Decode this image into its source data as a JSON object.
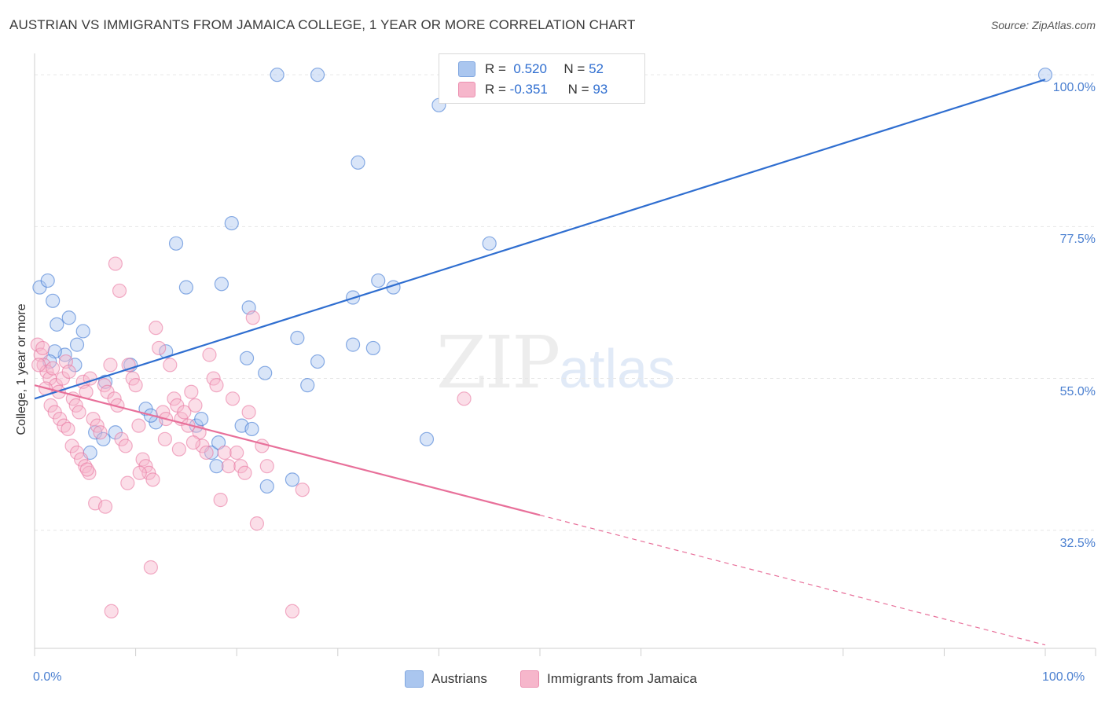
{
  "title": "AUSTRIAN VS IMMIGRANTS FROM JAMAICA COLLEGE, 1 YEAR OR MORE CORRELATION CHART",
  "source": "Source: ZipAtlas.com",
  "watermark": {
    "zip": "ZIP",
    "atlas": "atlas"
  },
  "legend": {
    "r_label": "R =",
    "n_label": "N =",
    "series": [
      {
        "r": "0.520",
        "n": "52"
      },
      {
        "r": "-0.351",
        "n": "93"
      }
    ]
  },
  "bottom_legend": [
    "Austrians",
    "Immigrants from Jamaica"
  ],
  "colors": {
    "blue_fill": "#aac6ef",
    "blue_line": "#2f6ed0",
    "pink_fill": "#f6b6cb",
    "pink_line": "#e8709a",
    "grid": "#e6e6e6",
    "tick": "#4a7fd0"
  },
  "chart_data": {
    "type": "scatter",
    "title": "AUSTRIAN VS IMMIGRANTS FROM JAMAICA COLLEGE, 1 YEAR OR MORE CORRELATION CHART",
    "xlabel": "",
    "ylabel": "College, 1 year or more",
    "xlim": [
      0,
      100
    ],
    "ylim": [
      15,
      102
    ],
    "x_tick_labels": [
      "0.0%",
      "100.0%"
    ],
    "y_ticks": [
      32.5,
      55.0,
      77.5,
      100.0
    ],
    "y_tick_labels": [
      "32.5%",
      "55.0%",
      "77.5%",
      "100.0%"
    ],
    "grid": true,
    "series": [
      {
        "name": "Austrians",
        "trend": {
          "x": [
            0,
            100
          ],
          "y": [
            52,
            99.3
          ],
          "solid_until": 100
        },
        "points": [
          [
            0.5,
            68.5
          ],
          [
            1.3,
            69.5
          ],
          [
            1.8,
            66.5
          ],
          [
            2.2,
            63
          ],
          [
            3.4,
            64
          ],
          [
            4.2,
            60
          ],
          [
            4.8,
            62
          ],
          [
            4.0,
            57
          ],
          [
            3.0,
            58.5
          ],
          [
            2.0,
            59
          ],
          [
            1.5,
            57.5
          ],
          [
            7.0,
            54.5
          ],
          [
            9.5,
            57
          ],
          [
            11,
            50.5
          ],
          [
            12,
            48.5
          ],
          [
            11.5,
            49.5
          ],
          [
            13,
            59
          ],
          [
            14,
            75
          ],
          [
            15,
            68.5
          ],
          [
            16,
            48
          ],
          [
            16.5,
            49
          ],
          [
            17.5,
            44
          ],
          [
            18,
            42
          ],
          [
            18.5,
            69
          ],
          [
            18.2,
            45.5
          ],
          [
            20.5,
            48
          ],
          [
            21,
            58
          ],
          [
            21.5,
            47.5
          ],
          [
            23,
            39
          ],
          [
            22.8,
            55.8
          ],
          [
            19.5,
            78
          ],
          [
            21.2,
            65.5
          ],
          [
            25.5,
            40
          ],
          [
            26,
            61
          ],
          [
            27,
            54
          ],
          [
            28,
            57.5
          ],
          [
            24,
            100
          ],
          [
            28,
            100
          ],
          [
            31.5,
            67
          ],
          [
            31.5,
            60
          ],
          [
            32,
            87
          ],
          [
            33.5,
            59.5
          ],
          [
            34,
            69.5
          ],
          [
            35.5,
            68.5
          ],
          [
            38.8,
            46
          ],
          [
            40,
            95.5
          ],
          [
            45,
            75
          ],
          [
            100,
            100
          ],
          [
            5.5,
            44
          ],
          [
            6.0,
            47
          ],
          [
            6.8,
            46
          ],
          [
            8.0,
            47
          ]
        ]
      },
      {
        "name": "Immigrants from Jamaica",
        "trend": {
          "x": [
            0,
            100
          ],
          "y": [
            54,
            15.5
          ],
          "solid_until": 50
        },
        "points": [
          [
            0.3,
            60
          ],
          [
            0.6,
            58.5
          ],
          [
            0.9,
            57
          ],
          [
            1.2,
            56
          ],
          [
            1.5,
            55
          ],
          [
            1.8,
            56.5
          ],
          [
            2.1,
            54
          ],
          [
            2.4,
            53
          ],
          [
            2.8,
            55
          ],
          [
            3.1,
            57.5
          ],
          [
            3.4,
            56
          ],
          [
            3.8,
            52
          ],
          [
            4.1,
            51
          ],
          [
            4.4,
            50
          ],
          [
            4.8,
            54.5
          ],
          [
            5.1,
            53
          ],
          [
            5.5,
            55
          ],
          [
            5.8,
            49
          ],
          [
            6.2,
            48
          ],
          [
            6.5,
            47
          ],
          [
            6.9,
            54
          ],
          [
            7.2,
            53
          ],
          [
            7.5,
            57
          ],
          [
            7.9,
            52
          ],
          [
            8.2,
            51
          ],
          [
            8.6,
            46
          ],
          [
            9.0,
            45
          ],
          [
            9.3,
            57
          ],
          [
            9.7,
            55
          ],
          [
            10.0,
            54
          ],
          [
            10.3,
            48
          ],
          [
            10.7,
            43
          ],
          [
            11.0,
            42
          ],
          [
            11.3,
            41
          ],
          [
            11.7,
            40
          ],
          [
            12.0,
            62.5
          ],
          [
            12.3,
            59.5
          ],
          [
            12.7,
            50
          ],
          [
            13.0,
            49
          ],
          [
            13.4,
            57
          ],
          [
            13.8,
            52
          ],
          [
            14.1,
            51
          ],
          [
            14.5,
            49
          ],
          [
            14.8,
            50
          ],
          [
            15.2,
            48
          ],
          [
            15.5,
            53
          ],
          [
            15.9,
            51
          ],
          [
            16.3,
            47
          ],
          [
            16.6,
            45
          ],
          [
            17.0,
            44
          ],
          [
            17.3,
            58.5
          ],
          [
            17.7,
            55
          ],
          [
            18.0,
            54
          ],
          [
            18.4,
            37
          ],
          [
            18.8,
            44
          ],
          [
            19.2,
            42
          ],
          [
            19.6,
            52
          ],
          [
            20.0,
            44
          ],
          [
            20.4,
            42
          ],
          [
            20.8,
            41
          ],
          [
            21.2,
            50
          ],
          [
            21.6,
            64
          ],
          [
            22.0,
            33.5
          ],
          [
            22.5,
            45
          ],
          [
            23.0,
            42
          ],
          [
            0.4,
            57
          ],
          [
            0.8,
            59.5
          ],
          [
            1.1,
            53.5
          ],
          [
            1.6,
            51
          ],
          [
            2.0,
            50
          ],
          [
            2.5,
            49
          ],
          [
            2.9,
            48
          ],
          [
            3.3,
            47.5
          ],
          [
            3.7,
            45
          ],
          [
            4.2,
            44
          ],
          [
            4.6,
            43
          ],
          [
            5.0,
            42
          ],
          [
            5.4,
            41
          ],
          [
            6.0,
            36.5
          ],
          [
            7.0,
            36
          ],
          [
            8.0,
            72
          ],
          [
            8.4,
            68
          ],
          [
            9.2,
            39.5
          ],
          [
            10.4,
            41
          ],
          [
            11.5,
            27
          ],
          [
            12.9,
            46
          ],
          [
            14.3,
            44.5
          ],
          [
            15.7,
            45.5
          ],
          [
            25.5,
            20.5
          ],
          [
            26.5,
            38.5
          ],
          [
            42.5,
            52
          ],
          [
            7.6,
            20.5
          ],
          [
            5.2,
            41.5
          ]
        ]
      }
    ]
  }
}
